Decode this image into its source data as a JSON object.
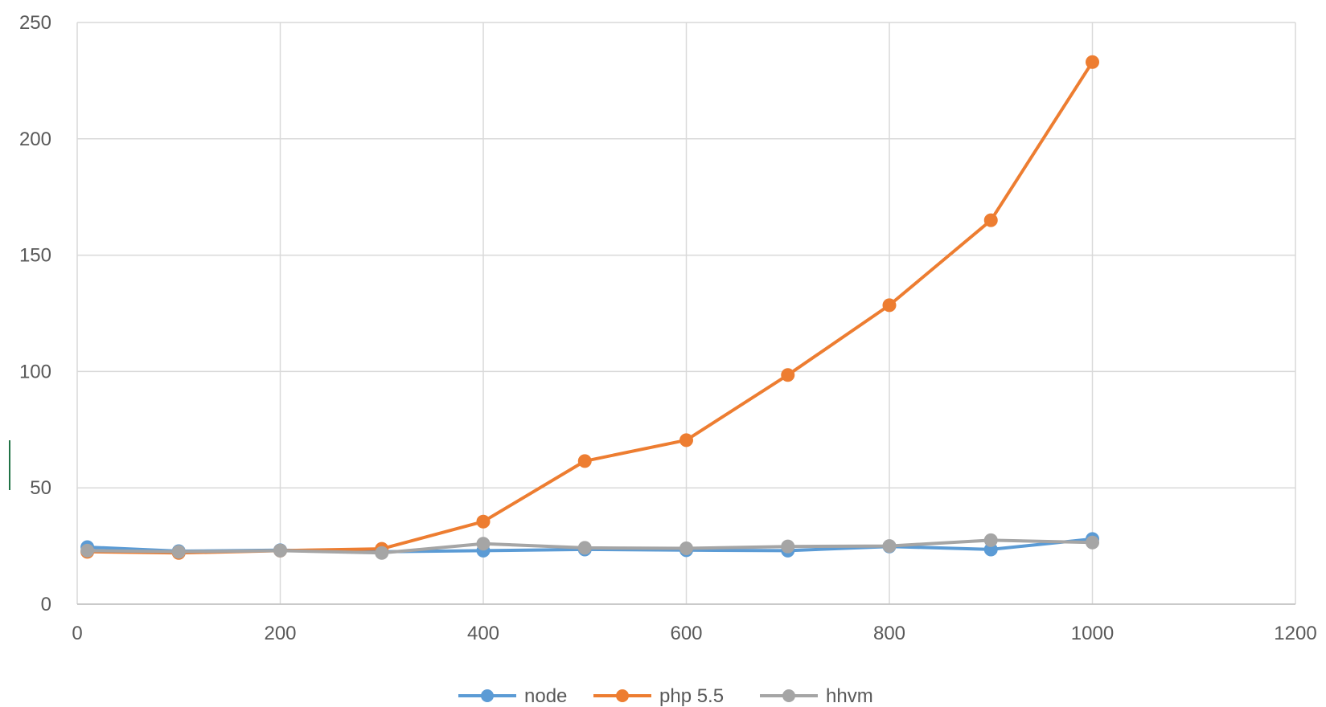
{
  "chart_data": {
    "type": "line",
    "title": "",
    "xlabel": "",
    "ylabel": "",
    "xlim": [
      0,
      1200
    ],
    "ylim": [
      0,
      250
    ],
    "x_ticks": [
      0,
      200,
      400,
      600,
      800,
      1000,
      1200
    ],
    "y_ticks": [
      0,
      50,
      100,
      150,
      200,
      250
    ],
    "grid": true,
    "legend_position": "bottom",
    "markers": true,
    "series": [
      {
        "name": "node",
        "color": "#5B9BD5",
        "points": [
          {
            "x": 10,
            "y": 24.5
          },
          {
            "x": 100,
            "y": 22.8
          },
          {
            "x": 200,
            "y": 23.2
          },
          {
            "x": 300,
            "y": 22.5
          },
          {
            "x": 400,
            "y": 23
          },
          {
            "x": 500,
            "y": 23.5
          },
          {
            "x": 600,
            "y": 23.2
          },
          {
            "x": 700,
            "y": 23
          },
          {
            "x": 800,
            "y": 24.8
          },
          {
            "x": 900,
            "y": 23.5
          },
          {
            "x": 1000,
            "y": 28
          }
        ]
      },
      {
        "name": "php 5.5",
        "color": "#ED7D31",
        "points": [
          {
            "x": 10,
            "y": 22.5
          },
          {
            "x": 100,
            "y": 22
          },
          {
            "x": 200,
            "y": 23
          },
          {
            "x": 300,
            "y": 23.8
          },
          {
            "x": 400,
            "y": 35.5
          },
          {
            "x": 500,
            "y": 61.5
          },
          {
            "x": 600,
            "y": 70.5
          },
          {
            "x": 700,
            "y": 98.5
          },
          {
            "x": 800,
            "y": 128.5
          },
          {
            "x": 900,
            "y": 165
          },
          {
            "x": 1000,
            "y": 233
          }
        ]
      },
      {
        "name": "hhvm",
        "color": "#A5A5A5",
        "points": [
          {
            "x": 10,
            "y": 23
          },
          {
            "x": 100,
            "y": 22.5
          },
          {
            "x": 200,
            "y": 23
          },
          {
            "x": 300,
            "y": 22
          },
          {
            "x": 400,
            "y": 26
          },
          {
            "x": 500,
            "y": 24.2
          },
          {
            "x": 600,
            "y": 24
          },
          {
            "x": 700,
            "y": 24.8
          },
          {
            "x": 800,
            "y": 25
          },
          {
            "x": 900,
            "y": 27.5
          },
          {
            "x": 1000,
            "y": 26.5
          }
        ]
      }
    ]
  }
}
